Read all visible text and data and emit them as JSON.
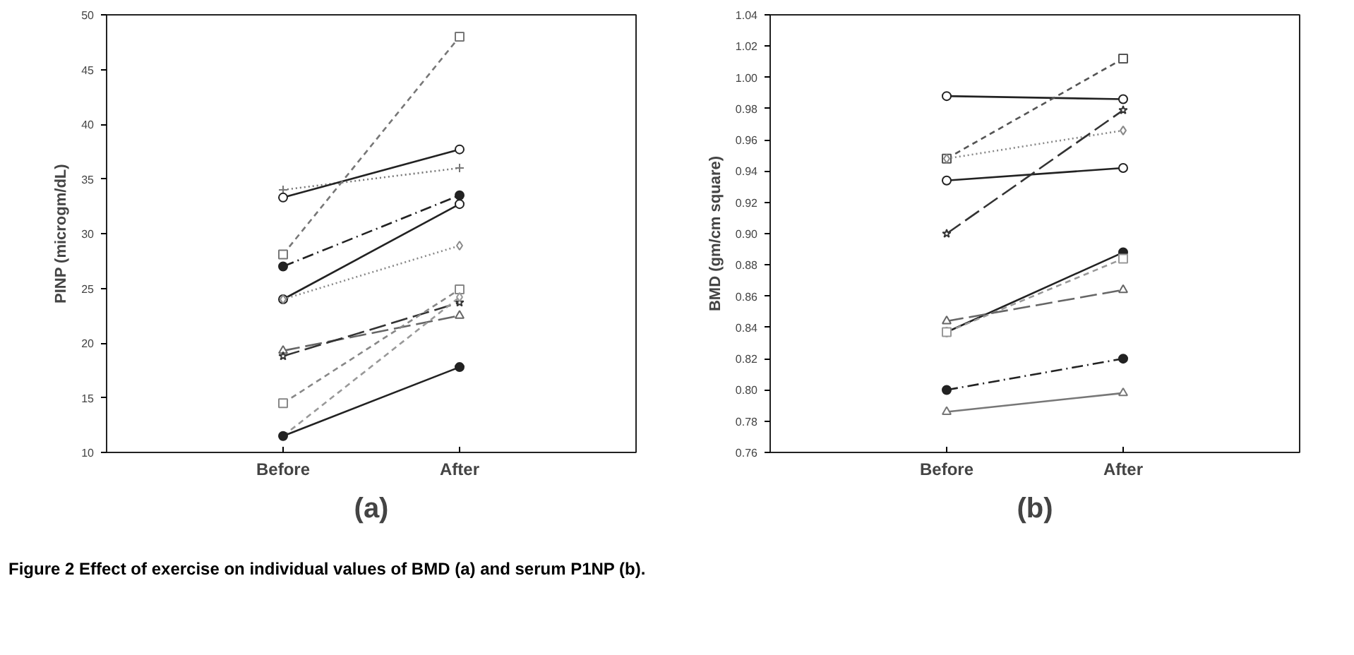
{
  "chart_data": [
    {
      "type": "line",
      "ylabel": "PINP (microgm/dL)",
      "categories": [
        "Before",
        "After"
      ],
      "ylim": [
        10,
        50
      ],
      "yticks": [
        10,
        15,
        20,
        25,
        30,
        35,
        40,
        45,
        50
      ],
      "grid": false,
      "annotations": [
        "(a)",
        "Figure 2 Effect of exercise on individual values of BMD (a) and serum P1NP (b)."
      ],
      "series": [
        {
          "color": "#777777",
          "values": [
            34,
            36
          ],
          "marker": "cross",
          "line_style": "dotted"
        },
        {
          "color": "#222222",
          "values": [
            33.3,
            37.7
          ],
          "marker": "circle",
          "line_style": "solid"
        },
        {
          "color": "#777777",
          "values": [
            28.1,
            48
          ],
          "marker": "square",
          "line_style": "dashed"
        },
        {
          "color": "#222222",
          "values": [
            27,
            33.5
          ],
          "marker": "filled_circle",
          "line_style": "dashdot"
        },
        {
          "color": "#222222",
          "values": [
            24,
            32.7
          ],
          "marker": "circle",
          "line_style": "solid"
        },
        {
          "color": "#888888",
          "values": [
            24,
            28.9
          ],
          "marker": "diamond",
          "line_style": "dotted"
        },
        {
          "color": "#666666",
          "values": [
            19.3,
            22.5
          ],
          "marker": "triangle",
          "line_style": "longdash"
        },
        {
          "color": "#333333",
          "values": [
            18.8,
            23.7
          ],
          "marker": "star",
          "line_style": "longdash"
        },
        {
          "color": "#888888",
          "values": [
            14.5,
            24.9
          ],
          "marker": "square",
          "line_style": "dashed"
        },
        {
          "color": "#999999",
          "values": [
            11.5,
            24.2
          ],
          "marker": "diamond",
          "line_style": "dashed"
        },
        {
          "color": "#222222",
          "values": [
            11.5,
            17.8
          ],
          "marker": "filled_circle",
          "line_style": "solid"
        }
      ]
    },
    {
      "type": "line",
      "ylabel": "BMD (gm/cm square)",
      "categories": [
        "Before",
        "After"
      ],
      "ylim": [
        0.76,
        1.04
      ],
      "yticks": [
        {
          "value": 0.76,
          "label": "0.76"
        },
        {
          "value": 0.78,
          "label": "0.78"
        },
        {
          "value": 0.8,
          "label": "0.80"
        },
        {
          "value": 0.82,
          "label": "0.82"
        },
        {
          "value": 0.84,
          "label": "0.84"
        },
        {
          "value": 0.86,
          "label": "0.86"
        },
        {
          "value": 0.88,
          "label": "0.88"
        },
        {
          "value": 0.9,
          "label": "0.90"
        },
        {
          "value": 0.92,
          "label": "0.92"
        },
        {
          "value": 0.94,
          "label": "0.94"
        },
        {
          "value": 0.96,
          "label": "0.96"
        },
        {
          "value": 0.98,
          "label": "0.98"
        },
        {
          "value": 1.0,
          "label": "1.00"
        },
        {
          "value": 1.02,
          "label": "1.02"
        },
        {
          "value": 1.04,
          "label": "1.04"
        }
      ],
      "grid": false,
      "annotations": [
        "(b)"
      ],
      "series": [
        {
          "color": "#222222",
          "values": [
            0.988,
            0.986
          ],
          "marker": "circle",
          "line_style": "solid"
        },
        {
          "color": "#555555",
          "values": [
            0.948,
            1.012
          ],
          "marker": "square",
          "line_style": "dashed"
        },
        {
          "color": "#888888",
          "values": [
            0.948,
            0.966
          ],
          "marker": "diamond",
          "line_style": "dotted"
        },
        {
          "color": "#222222",
          "values": [
            0.934,
            0.942
          ],
          "marker": "circle",
          "line_style": "solid"
        },
        {
          "color": "#333333",
          "values": [
            0.9,
            0.979
          ],
          "marker": "star",
          "line_style": "longdash"
        },
        {
          "color": "#222222",
          "values": [
            0.837,
            0.888
          ],
          "marker": "filled_circle",
          "line_style": "solid"
        },
        {
          "color": "#999999",
          "values": [
            0.837,
            0.884
          ],
          "marker": "square",
          "line_style": "dashed"
        },
        {
          "color": "#666666",
          "values": [
            0.844,
            0.864
          ],
          "marker": "triangle",
          "line_style": "longdash"
        },
        {
          "color": "#222222",
          "values": [
            0.8,
            0.82
          ],
          "marker": "filled_circle",
          "line_style": "dashdot"
        },
        {
          "color": "#777777",
          "values": [
            0.786,
            0.798
          ],
          "marker": "triangle",
          "line_style": "solid"
        }
      ]
    }
  ]
}
